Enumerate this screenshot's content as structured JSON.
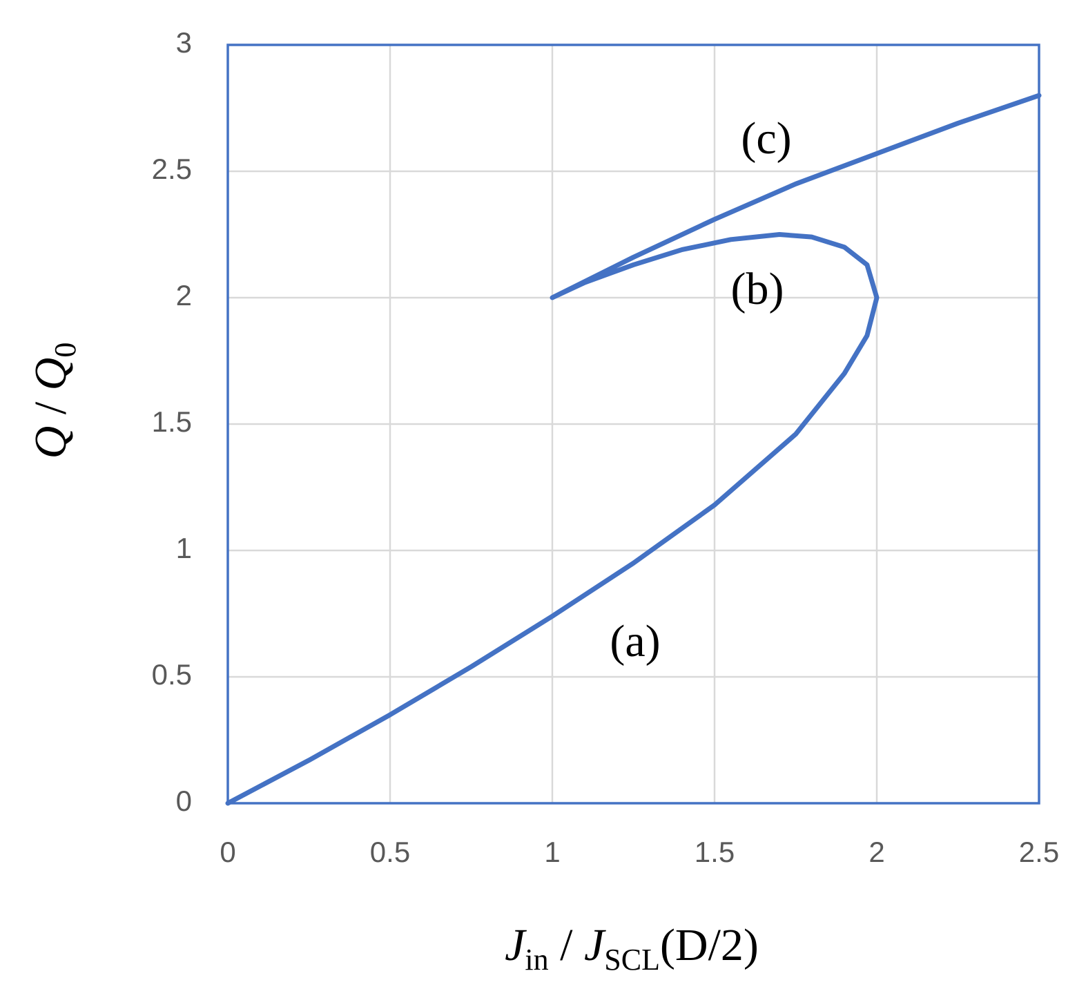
{
  "chart_data": {
    "type": "line",
    "xlabel": [
      "J",
      "in",
      " / ",
      "J",
      "SCL",
      "(D/2)"
    ],
    "ylabel": [
      "Q",
      " / ",
      "Q",
      "0"
    ],
    "annotations": [
      "(a)",
      "(b)",
      "(c)"
    ],
    "x": [
      0,
      0.25,
      0.5,
      0.75,
      1,
      1.25,
      1.5,
      1.75,
      1.9,
      1.97,
      2,
      1.97,
      1.9,
      1.8,
      1.7,
      1.55,
      1.4,
      1.25,
      1.1,
      1,
      1.25,
      1.5,
      1.75,
      2,
      2.25,
      2.5
    ],
    "y": [
      0,
      0.17,
      0.35,
      0.54,
      0.74,
      0.95,
      1.18,
      1.46,
      1.7,
      1.85,
      2,
      2.13,
      2.2,
      2.24,
      2.25,
      2.23,
      2.19,
      2.13,
      2.06,
      2,
      2.16,
      2.31,
      2.45,
      2.57,
      2.69,
      2.8
    ],
    "color": "#4472c4",
    "xlim": [
      0,
      2.5
    ],
    "ylim": [
      0,
      3
    ],
    "xticks": [
      0,
      0.5,
      1,
      1.5,
      2,
      2.5
    ],
    "yticks": [
      0,
      0.5,
      1,
      1.5,
      2,
      2.5,
      3
    ],
    "grid": true
  }
}
